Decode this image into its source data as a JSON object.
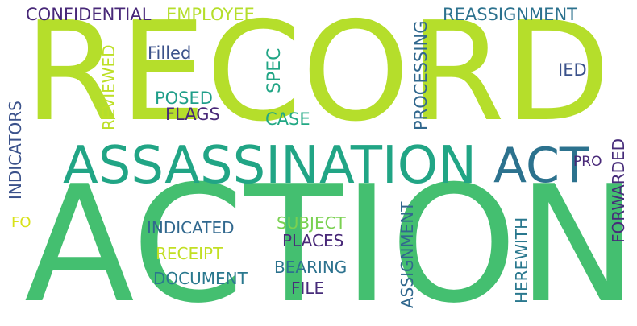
{
  "words": [
    {
      "text": "RECORD",
      "color": "#b5de2b"
    },
    {
      "text": "ACTION",
      "color": "#44bf70"
    },
    {
      "text": "ASSASSINATION",
      "color": "#21a585"
    },
    {
      "text": "ACT",
      "color": "#2c728e"
    },
    {
      "text": "CONFIDENTIAL",
      "color": "#482878"
    },
    {
      "text": "EMPLOYEE",
      "color": "#b5de2b"
    },
    {
      "text": "REASSIGNMENT",
      "color": "#2c728e"
    },
    {
      "text": "Filled",
      "color": "#3b528b"
    },
    {
      "text": "SPEC",
      "color": "#21a585"
    },
    {
      "text": "IED",
      "color": "#3b528b"
    },
    {
      "text": "POSED",
      "color": "#1f9e89"
    },
    {
      "text": "FLAGS",
      "color": "#482878"
    },
    {
      "text": "CASE",
      "color": "#22a884"
    },
    {
      "text": "PRO",
      "color": "#482878"
    },
    {
      "text": "REVIEWED",
      "color": "#bddf26"
    },
    {
      "text": "PROCESSING",
      "color": "#31688e"
    },
    {
      "text": "INDICATORS",
      "color": "#3b528b"
    },
    {
      "text": "FORWARDED",
      "color": "#472c7a"
    },
    {
      "text": "FO",
      "color": "#d8e219"
    },
    {
      "text": "INDICATED",
      "color": "#31688e"
    },
    {
      "text": "SUBJECT",
      "color": "#7ad151"
    },
    {
      "text": "PLACES",
      "color": "#482878"
    },
    {
      "text": "RECEIPT",
      "color": "#c2df23"
    },
    {
      "text": "BEARING",
      "color": "#2c728e"
    },
    {
      "text": "DOCUMENT",
      "color": "#2a788e"
    },
    {
      "text": "FILE",
      "color": "#472c7a"
    },
    {
      "text": "ASSIGNMENT",
      "color": "#31688e"
    },
    {
      "text": "HEREWITH",
      "color": "#2a788e"
    }
  ]
}
